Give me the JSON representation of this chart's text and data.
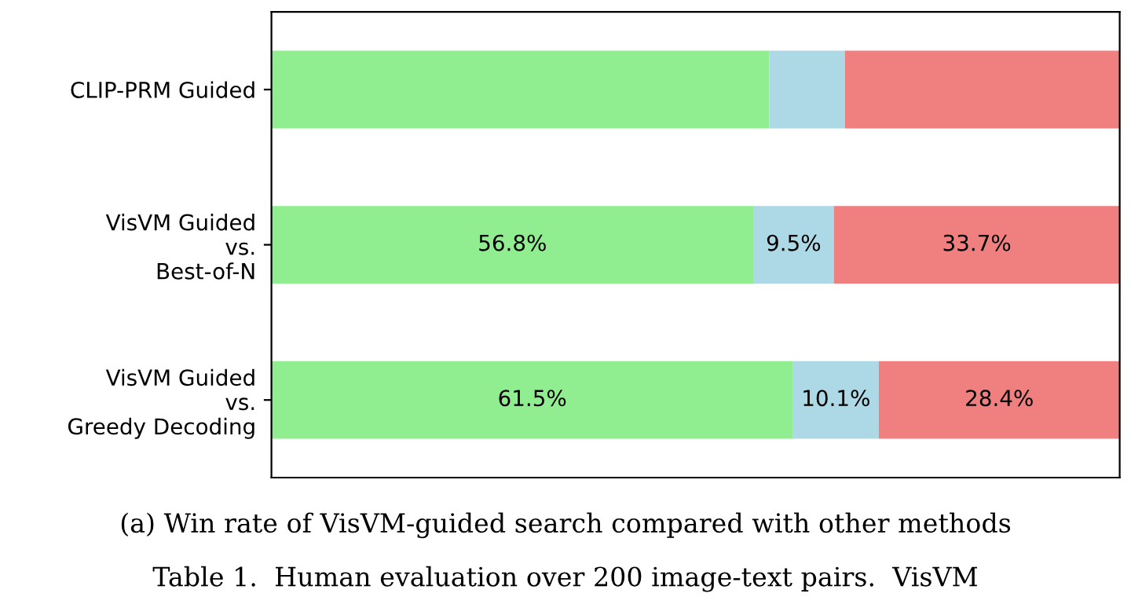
{
  "chart_data": {
    "type": "bar",
    "orientation": "horizontal",
    "stacked": true,
    "categories": [
      "CLIP-PRM Guided",
      "VisVM Guided\nvs.\nBest-of-N",
      "VisVM Guided\nvs.\nGreedy Decoding"
    ],
    "series": [
      {
        "color": "#90ee90",
        "values": [
          58.7,
          56.8,
          61.5
        ],
        "value_labels": [
          null,
          "56.8%",
          "61.5%"
        ]
      },
      {
        "color": "#add8e6",
        "values": [
          8.9,
          9.5,
          10.1
        ],
        "value_labels": [
          null,
          "9.5%",
          "10.1%"
        ]
      },
      {
        "color": "#f08080",
        "values": [
          32.4,
          33.7,
          28.4
        ],
        "value_labels": [
          null,
          "33.7%",
          "28.4%"
        ]
      }
    ],
    "xlim": [
      0,
      100
    ],
    "tick_labels": "y",
    "grid": false,
    "legend": false,
    "annotations": [
      "(a) Win rate of VisVM-guided search compared with other methods",
      "Table 1.  Human evaluation over 200 image-text pairs.  VisVM"
    ]
  }
}
